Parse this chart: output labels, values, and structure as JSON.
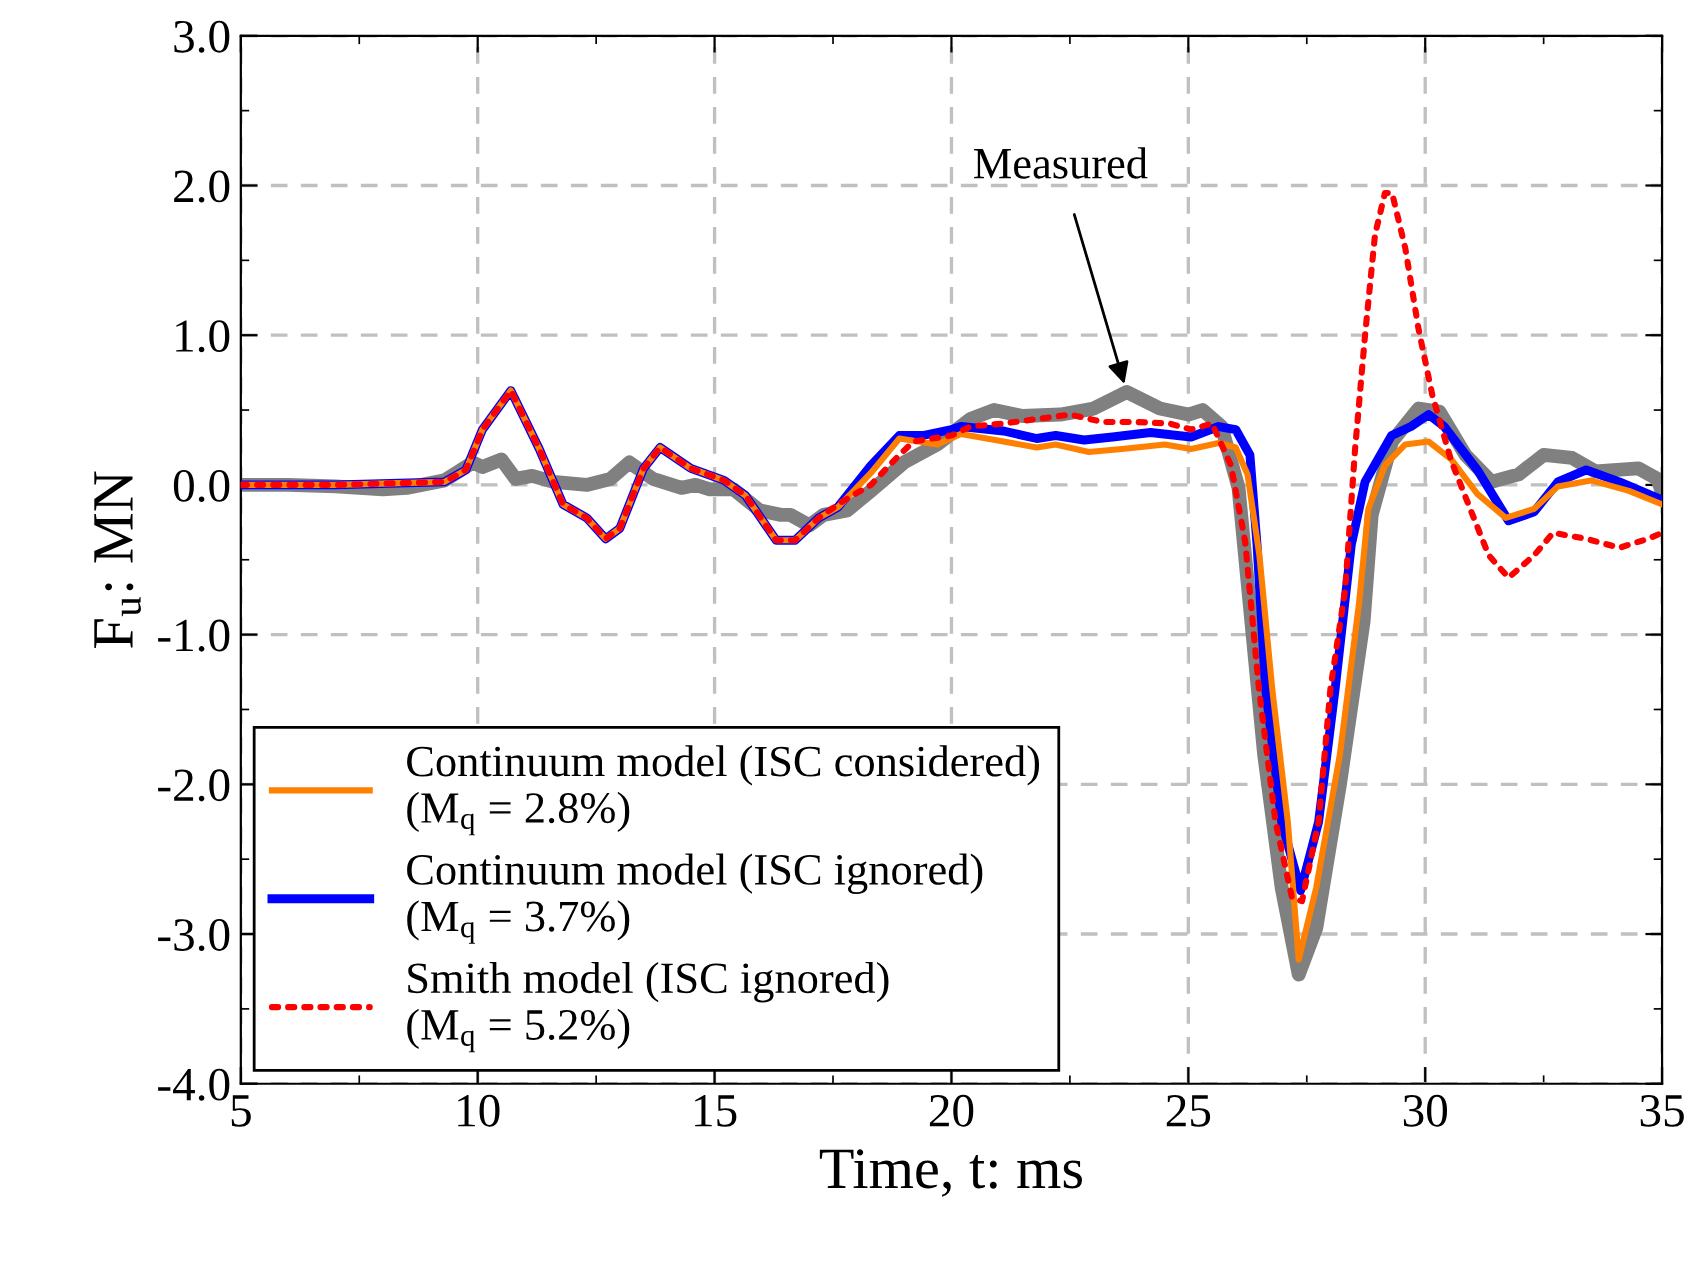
{
  "chart_data": {
    "type": "line",
    "xlabel": "Time, t: ms",
    "ylabel": "F$_{u}$: MN",
    "xlim": [
      5,
      35
    ],
    "xticks": [
      5,
      10,
      15,
      20,
      25,
      30,
      35
    ],
    "ylim": [
      -4,
      3
    ],
    "yticks": [
      {
        "value": -4,
        "label": "-4.0"
      },
      {
        "value": -3,
        "label": "-3.0"
      },
      {
        "value": -2,
        "label": "-2.0"
      },
      {
        "value": -1,
        "label": "-1.0"
      },
      {
        "value": 0,
        "label": "0.0"
      },
      {
        "value": 1,
        "label": "1.0"
      },
      {
        "value": 2,
        "label": "2.0"
      },
      {
        "value": 3,
        "label": "3.0"
      }
    ],
    "grid": true,
    "legend": "bottom left",
    "marker": "none",
    "annotations": [
      {
        "text": "Measured",
        "x": 23.7,
        "y": 0.62
      }
    ],
    "series": [
      {
        "color": "#808080",
        "line_style": "solid",
        "x": [
          5,
          6,
          7,
          8,
          8.5,
          9.3,
          9.9,
          10.1,
          10.5,
          10.8,
          11.15,
          11.6,
          12.3,
          12.8,
          13.2,
          13.7,
          14.3,
          14.6,
          14.9,
          15.4,
          15.95,
          16.4,
          16.6,
          17.0,
          17.3,
          17.8,
          18.3,
          19.0,
          19.7,
          20.4,
          20.9,
          21.5,
          22.3,
          23.0,
          23.7,
          24.4,
          25.0,
          25.3,
          25.7,
          26.06,
          26.33,
          26.6,
          26.97,
          27.33,
          27.7,
          28.2,
          28.7,
          28.87,
          29.3,
          29.86,
          30.3,
          30.85,
          31.4,
          31.97,
          32.5,
          33.1,
          33.6,
          34.5,
          34.9,
          35
        ],
        "values": [
          0,
          0.0,
          -0.01,
          -0.03,
          -0.02,
          0.03,
          0.15,
          0.12,
          0.17,
          0.04,
          0.06,
          0.02,
          0.0,
          0.04,
          0.15,
          0.04,
          -0.02,
          0.0,
          -0.03,
          -0.03,
          -0.17,
          -0.2,
          -0.2,
          -0.27,
          -0.2,
          -0.17,
          -0.04,
          0.15,
          0.27,
          0.44,
          0.5,
          0.46,
          0.47,
          0.51,
          0.62,
          0.51,
          0.47,
          0.5,
          0.39,
          -0.02,
          -0.91,
          -1.8,
          -2.69,
          -3.27,
          -2.96,
          -2.0,
          -0.91,
          -0.2,
          0.29,
          0.51,
          0.49,
          0.2,
          0.02,
          0.07,
          0.2,
          0.18,
          0.09,
          0.11,
          0.04,
          -0.05
        ]
      },
      {
        "name": "Continuum model (ISC considered)\n(M$_{q}$ = 2.8%)",
        "color": "#ff8000",
        "line_style": "solid",
        "x": [
          5,
          7,
          9.3,
          9.75,
          10.1,
          10.7,
          11.3,
          11.8,
          12.3,
          12.7,
          13.0,
          13.5,
          13.85,
          14.5,
          15.2,
          15.65,
          16.3,
          16.7,
          17.2,
          17.6,
          18.3,
          18.9,
          19.7,
          20.2,
          21.1,
          21.8,
          22.2,
          22.9,
          23.6,
          24.5,
          25.06,
          25.64,
          26.0,
          26.25,
          26.5,
          26.77,
          27.1,
          27.33,
          27.7,
          28.2,
          28.6,
          28.8,
          29.15,
          29.58,
          30.07,
          30.55,
          31.1,
          31.7,
          32.3,
          32.8,
          33.5,
          34.3,
          35
        ],
        "values": [
          0,
          0.0,
          0.02,
          0.1,
          0.37,
          0.63,
          0.24,
          -0.13,
          -0.22,
          -0.36,
          -0.29,
          0.11,
          0.25,
          0.11,
          0.03,
          -0.07,
          -0.37,
          -0.37,
          -0.22,
          -0.15,
          0.08,
          0.31,
          0.27,
          0.34,
          0.29,
          0.25,
          0.27,
          0.22,
          0.24,
          0.27,
          0.24,
          0.28,
          0.25,
          0.07,
          -0.47,
          -1.36,
          -2.25,
          -3.17,
          -2.69,
          -1.8,
          -0.8,
          -0.16,
          0.13,
          0.27,
          0.29,
          0.17,
          -0.06,
          -0.22,
          -0.16,
          -0.01,
          0.03,
          -0.04,
          -0.13
        ]
      },
      {
        "name": "Continuum model (ISC ignored)\n(M$_{q}$ = 3.7%)",
        "color": "#0000ff",
        "line_style": "solid",
        "x": [
          5,
          7,
          9.3,
          9.75,
          10.1,
          10.7,
          11.3,
          11.8,
          12.3,
          12.7,
          13.0,
          13.5,
          13.85,
          14.5,
          15.2,
          15.65,
          16.3,
          16.7,
          17.2,
          17.6,
          18.3,
          18.9,
          19.4,
          20.0,
          20.2,
          21.1,
          21.8,
          22.2,
          22.8,
          23.4,
          24.2,
          25.06,
          25.64,
          26.0,
          26.3,
          26.45,
          26.63,
          26.97,
          27.37,
          27.75,
          28.1,
          28.44,
          28.73,
          29.29,
          29.7,
          30.07,
          30.4,
          31.1,
          31.76,
          32.3,
          32.8,
          33.4,
          34.1,
          35
        ],
        "values": [
          0,
          0.0,
          0.02,
          0.1,
          0.37,
          0.63,
          0.24,
          -0.13,
          -0.22,
          -0.36,
          -0.29,
          0.11,
          0.25,
          0.11,
          0.03,
          -0.07,
          -0.37,
          -0.37,
          -0.22,
          -0.15,
          0.13,
          0.33,
          0.33,
          0.37,
          0.39,
          0.36,
          0.31,
          0.33,
          0.3,
          0.32,
          0.35,
          0.32,
          0.39,
          0.37,
          0.2,
          -0.4,
          -1.36,
          -2.25,
          -2.71,
          -2.25,
          -1.36,
          -0.4,
          0.02,
          0.33,
          0.39,
          0.47,
          0.39,
          0.1,
          -0.24,
          -0.18,
          0.02,
          0.1,
          0.02,
          -0.1
        ]
      },
      {
        "name": "Smith model (ISC ignored)\n(M$_{q}$ = 5.2%)",
        "color": "#ff0000",
        "line_style": "dotted",
        "x": [
          5,
          7,
          9.3,
          9.75,
          10.1,
          10.7,
          11.3,
          11.8,
          12.3,
          12.7,
          13.0,
          13.5,
          13.85,
          14.5,
          15.2,
          15.65,
          16.3,
          16.7,
          17.2,
          17.7,
          18.3,
          18.9,
          19.2,
          20.0,
          20.4,
          21.1,
          21.8,
          22.5,
          23.2,
          23.9,
          24.6,
          25.06,
          25.5,
          25.9,
          26.2,
          26.49,
          26.84,
          27.19,
          27.4,
          27.75,
          28.0,
          28.31,
          28.52,
          28.73,
          28.94,
          29.15,
          29.3,
          29.58,
          29.86,
          30.15,
          30.55,
          31.0,
          31.34,
          31.76,
          32.3,
          32.7,
          33.4,
          34.1,
          34.7,
          35
        ],
        "values": [
          0,
          0.0,
          0.02,
          0.1,
          0.37,
          0.63,
          0.24,
          -0.13,
          -0.22,
          -0.36,
          -0.29,
          0.11,
          0.25,
          0.11,
          0.03,
          -0.07,
          -0.37,
          -0.37,
          -0.22,
          -0.11,
          0.0,
          0.2,
          0.29,
          0.33,
          0.39,
          0.41,
          0.44,
          0.47,
          0.42,
          0.42,
          0.41,
          0.37,
          0.41,
          0.13,
          -0.38,
          -1.36,
          -2.25,
          -2.76,
          -2.78,
          -2.25,
          -1.36,
          -0.7,
          0.24,
          1.0,
          1.67,
          1.95,
          1.95,
          1.58,
          1.04,
          0.6,
          0.16,
          -0.2,
          -0.47,
          -0.62,
          -0.47,
          -0.32,
          -0.36,
          -0.42,
          -0.36,
          -0.32
        ]
      }
    ]
  }
}
